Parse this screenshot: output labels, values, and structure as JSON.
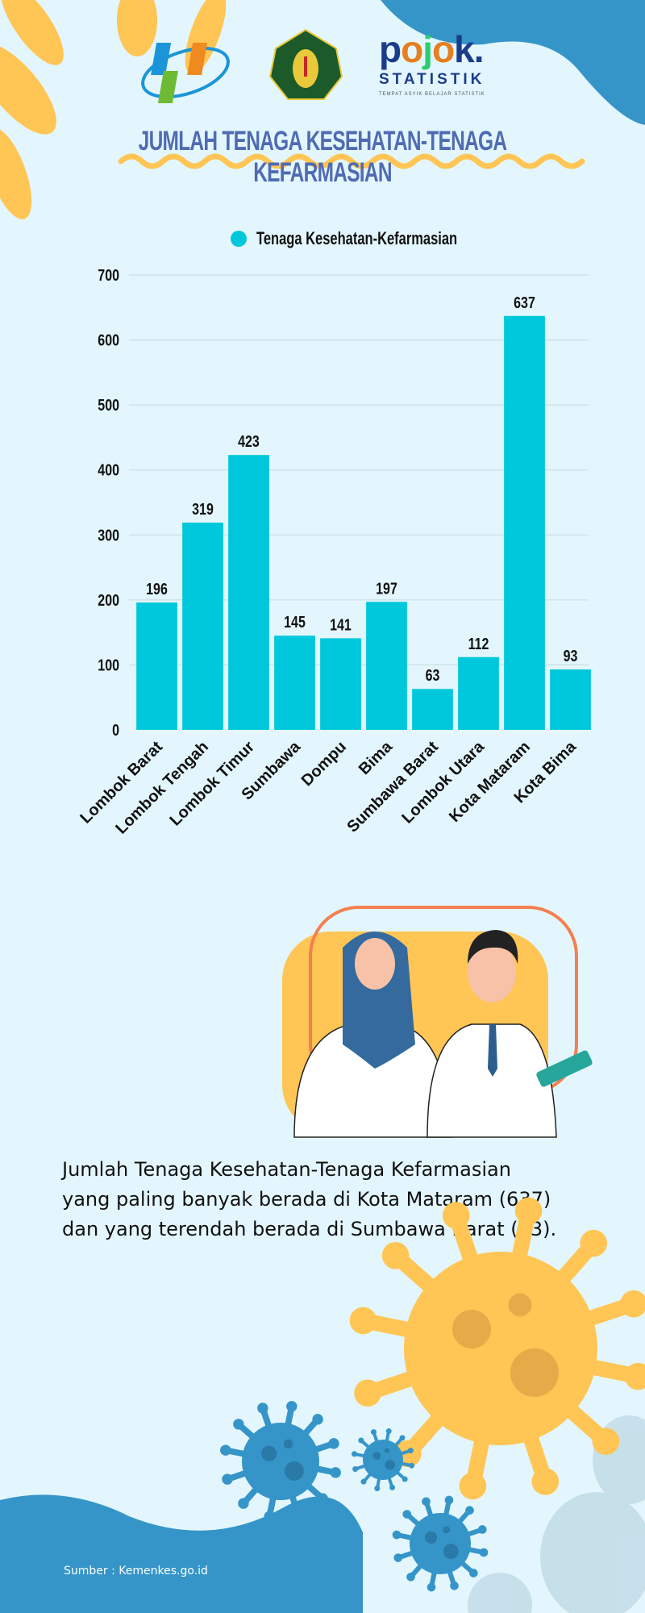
{
  "header": {
    "logos": [
      "BPS",
      "UNIVERSITAS HAMZANWADI",
      "pojok STATISTIK"
    ],
    "pojok_tagline": "TEMPAT ASYIK BELAJAR STATISTIK",
    "title": "JUMLAH TENAGA KESEHATAN-TENAGA KEFARMASIAN"
  },
  "chart_data": {
    "type": "bar",
    "categories": [
      "Lombok Barat",
      "Lombok Tengah",
      "Lombok Timur",
      "Sumbawa",
      "Dompu",
      "Bima",
      "Sumbawa Barat",
      "Lombok Utara",
      "Kota Mataram",
      "Kota Bima"
    ],
    "series": [
      {
        "name": "Tenaga Kesehatan-Kefarmasian",
        "values": [
          196,
          319,
          423,
          145,
          141,
          197,
          63,
          112,
          637,
          93
        ],
        "color": "#00c8dc"
      }
    ],
    "yticks": [
      0,
      100,
      200,
      300,
      400,
      500,
      600,
      700
    ],
    "ylim": [
      0,
      700
    ],
    "grid": true,
    "legend": "top"
  },
  "summary": {
    "lines": [
      "Jumlah Tenaga Kesehatan-Tenaga Kefarmasian",
      "yang paling banyak berada di Kota Mataram (637)",
      "dan yang terendah berada di Sumbawa Barat (63)."
    ]
  },
  "footer": {
    "source": "Sumber : Kemenkes.go.id"
  },
  "colors": {
    "background": "#e3f6fe",
    "accent_yellow": "#ffc555",
    "accent_blue": "#3595c8",
    "title": "#4f6bb3",
    "bar": "#00c8dc"
  }
}
